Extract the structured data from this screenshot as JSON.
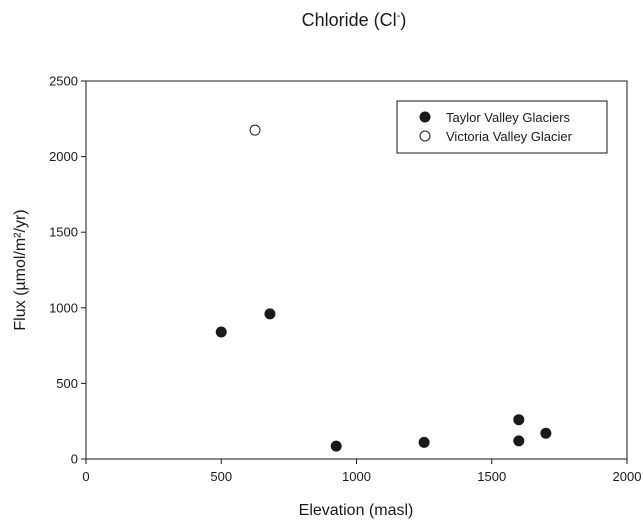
{
  "chart_data": {
    "type": "scatter",
    "title": "Chloride (Cl",
    "title_superscript": "-",
    "title_suffix": ")",
    "xlabel": "Elevation (masl)",
    "ylabel": "Flux (µmol/m²/yr)",
    "xlim": [
      0,
      2000
    ],
    "ylim": [
      0,
      2500
    ],
    "xticks": [
      0,
      500,
      1000,
      1500,
      2000
    ],
    "yticks": [
      0,
      500,
      1000,
      1500,
      2000,
      2500
    ],
    "grid": false,
    "legend_position": "top-right",
    "series": [
      {
        "name": "Taylor Valley Glaciers",
        "marker": "filled-circle",
        "color": "#1a1a1a",
        "points": [
          {
            "x": 500,
            "y": 840
          },
          {
            "x": 680,
            "y": 960
          },
          {
            "x": 925,
            "y": 85
          },
          {
            "x": 1250,
            "y": 110
          },
          {
            "x": 1600,
            "y": 260
          },
          {
            "x": 1600,
            "y": 120
          },
          {
            "x": 1700,
            "y": 170
          }
        ]
      },
      {
        "name": "Victoria Valley Glacier",
        "marker": "open-circle",
        "color": "#1a1a1a",
        "points": [
          {
            "x": 625,
            "y": 2175
          }
        ]
      }
    ]
  }
}
